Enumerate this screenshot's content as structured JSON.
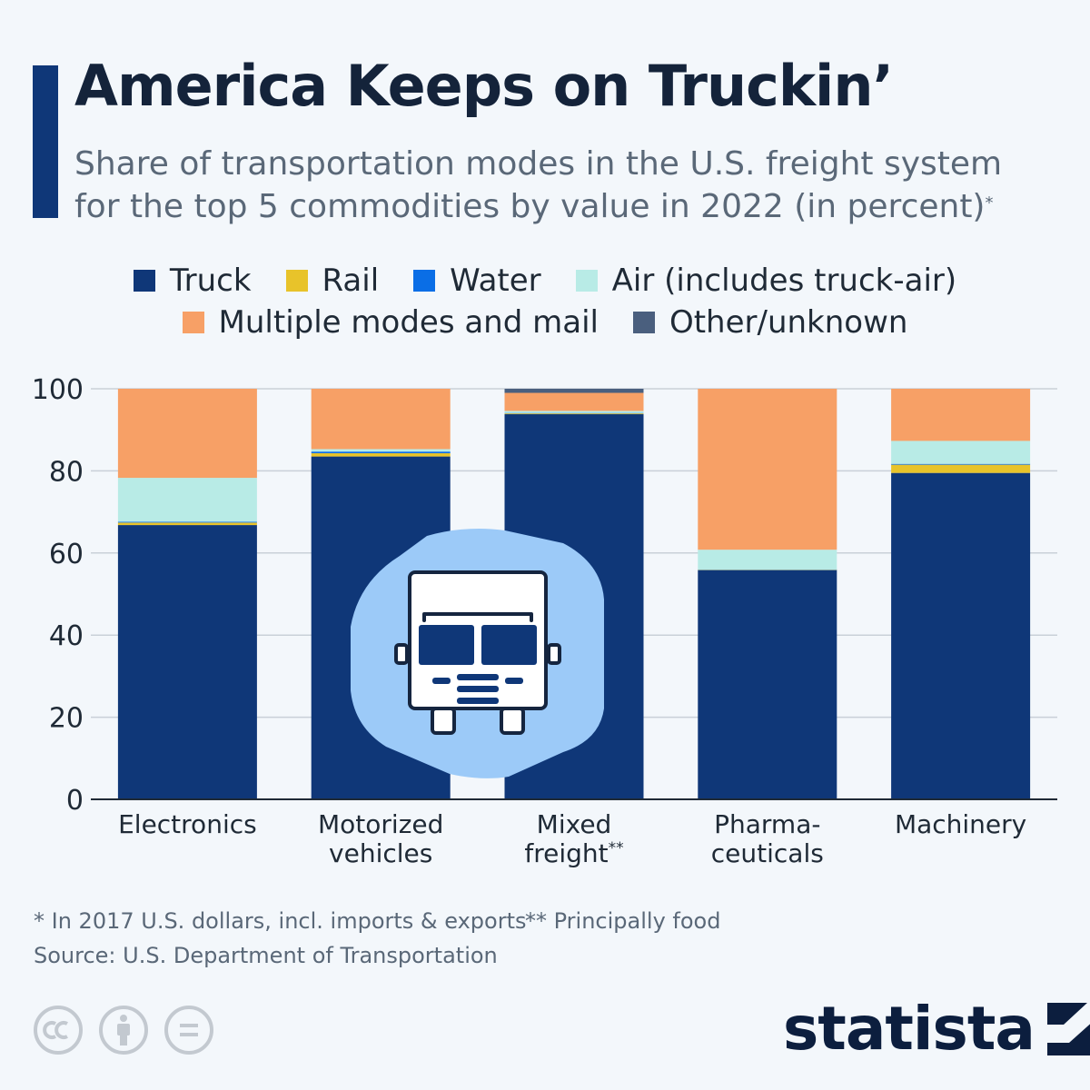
{
  "header": {
    "title": "America Keeps on Truckin’",
    "subtitle_line1": "Share of transportation modes in the U.S. freight system",
    "subtitle_line2": "for the top 5 commodities by value in 2022 (in percent)",
    "subtitle_mark": "*"
  },
  "legend": {
    "truck": "Truck",
    "rail": "Rail",
    "water": "Water",
    "air": "Air (includes truck-air)",
    "multiple": "Multiple modes and mail",
    "other": "Other/unknown"
  },
  "colors": {
    "truck": "#0f3778",
    "rail": "#e8c32a",
    "water": "#0a6ee6",
    "air": "#b8ebe6",
    "multiple": "#f7a066",
    "other": "#4a5f7e",
    "grid": "#c9d0d8",
    "axis": "#1f2a36",
    "icon_bg": "#9ccaf8"
  },
  "chart_data": {
    "type": "bar",
    "stacked": true,
    "title": "America Keeps on Truckin’",
    "ylabel": "",
    "xlabel": "",
    "ylim": [
      0,
      100
    ],
    "yticks": [
      0,
      20,
      40,
      60,
      80,
      100
    ],
    "grid": true,
    "legend_position": "top",
    "categories": [
      [
        "Electronics"
      ],
      [
        "Motorized",
        "vehicles"
      ],
      [
        "Mixed",
        "freight**"
      ],
      [
        "Pharma-",
        "ceuticals"
      ],
      [
        "Machinery"
      ]
    ],
    "category_names": [
      "Electronics",
      "Motorized vehicles",
      "Mixed freight**",
      "Pharma-ceuticals",
      "Machinery"
    ],
    "series": [
      {
        "key": "truck",
        "name": "Truck",
        "values": [
          66.8,
          83.5,
          93.8,
          55.8,
          79.5
        ]
      },
      {
        "key": "rail",
        "name": "Rail",
        "values": [
          0.6,
          0.8,
          0.2,
          0.1,
          2.0
        ]
      },
      {
        "key": "water",
        "name": "Water",
        "values": [
          0.2,
          0.4,
          0.1,
          0.1,
          0.2
        ]
      },
      {
        "key": "air",
        "name": "Air (includes truck-air)",
        "values": [
          10.7,
          0.6,
          0.5,
          4.8,
          5.6
        ]
      },
      {
        "key": "multiple",
        "name": "Multiple modes and mail",
        "values": [
          21.7,
          14.7,
          4.4,
          39.2,
          12.7
        ]
      },
      {
        "key": "other",
        "name": "Other/unknown",
        "values": [
          0.0,
          0.0,
          1.0,
          0.0,
          0.0
        ]
      }
    ]
  },
  "footnotes": {
    "note1": "* In 2017 U.S. dollars, incl. imports & exports",
    "note2": "** Principally food",
    "source": "Source: U.S. Department of Transportation"
  },
  "brand": {
    "name": "statista"
  }
}
